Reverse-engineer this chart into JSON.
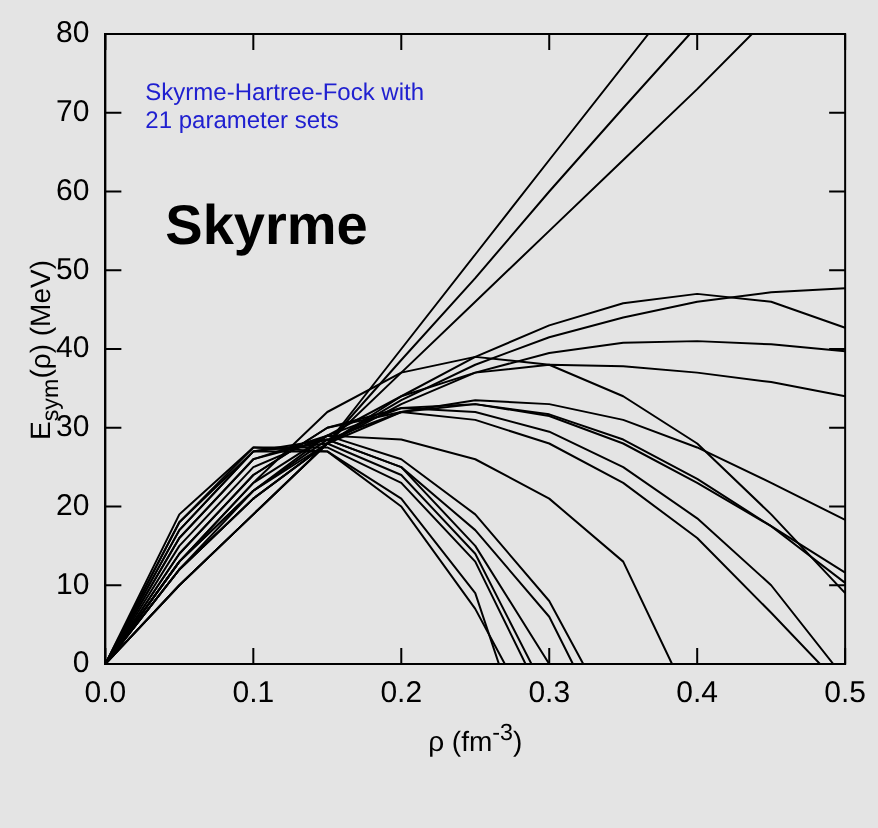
{
  "chart_data": {
    "type": "line",
    "xlabel": "ρ (fm$^{-3}$)",
    "ylabel": "E$_{sym}$(ρ) (MeV)",
    "annotations": [
      "Skyrme-Hartree-Fock with 21 parameter sets",
      "Skyrme"
    ],
    "xlim": [
      0,
      0.5
    ],
    "ylim": [
      0,
      80
    ],
    "xticks": [
      {
        "value": 0,
        "label": "0.0"
      },
      0.1,
      0.2,
      0.3,
      0.4,
      0.5
    ],
    "yticks": [
      0,
      10,
      20,
      30,
      40,
      50,
      60,
      70,
      80
    ],
    "grid": false,
    "legend": false,
    "marker": "none",
    "series": [
      {
        "color": "#000000",
        "x": [
          0,
          0.05,
          0.1,
          0.15,
          0.2,
          0.25,
          0.3,
          0.367
        ],
        "values": [
          0,
          10,
          19,
          28,
          40,
          52,
          64,
          80
        ]
      },
      {
        "color": "#000000",
        "x": [
          0,
          0.05,
          0.1,
          0.15,
          0.2,
          0.25,
          0.3,
          0.35,
          0.395
        ],
        "values": [
          0,
          10,
          19,
          28,
          38.6,
          49,
          60,
          70.6,
          80
        ]
      },
      {
        "color": "#000000",
        "x": [
          0,
          0.05,
          0.1,
          0.15,
          0.2,
          0.25,
          0.3,
          0.35,
          0.4,
          0.437
        ],
        "values": [
          0,
          10,
          19,
          28,
          37,
          46,
          55,
          64,
          73,
          80
        ]
      },
      {
        "color": "#000000",
        "x": [
          0,
          0.05,
          0.1,
          0.15,
          0.2,
          0.25,
          0.3,
          0.35,
          0.4,
          0.45,
          0.5
        ],
        "values": [
          0,
          12,
          21,
          28,
          33.5,
          38,
          41.5,
          44,
          46,
          47.2,
          47.7
        ]
      },
      {
        "color": "#000000",
        "x": [
          0,
          0.05,
          0.1,
          0.15,
          0.2,
          0.25,
          0.3,
          0.35,
          0.4,
          0.45,
          0.5
        ],
        "values": [
          0,
          12,
          21,
          28,
          34,
          39,
          43,
          45.8,
          47,
          46,
          42.7
        ]
      },
      {
        "color": "#000000",
        "x": [
          0,
          0.05,
          0.1,
          0.15,
          0.2,
          0.25,
          0.3,
          0.35,
          0.4,
          0.45,
          0.5
        ],
        "values": [
          0,
          12,
          21,
          28,
          33,
          37,
          39.5,
          40.8,
          41,
          40.6,
          39.7
        ]
      },
      {
        "color": "#000000",
        "x": [
          0,
          0.05,
          0.1,
          0.15,
          0.2,
          0.25,
          0.3,
          0.35,
          0.4,
          0.45,
          0.5
        ],
        "values": [
          0,
          12,
          22,
          29,
          34,
          37,
          38,
          37.8,
          37,
          35.8,
          34
        ]
      },
      {
        "color": "#000000",
        "x": [
          0,
          0.05,
          0.1,
          0.15,
          0.2,
          0.25,
          0.3,
          0.35,
          0.4,
          0.45,
          0.5
        ],
        "values": [
          0,
          13,
          23,
          32,
          37,
          39,
          38,
          34,
          28,
          19,
          9
        ]
      },
      {
        "color": "#000000",
        "x": [
          0,
          0.05,
          0.1,
          0.15,
          0.2,
          0.25,
          0.3,
          0.35,
          0.4,
          0.45,
          0.5
        ],
        "values": [
          0,
          13,
          22,
          28.5,
          32,
          33.5,
          33,
          31,
          27.5,
          23,
          18.3
        ]
      },
      {
        "color": "#000000",
        "x": [
          0,
          0.05,
          0.1,
          0.15,
          0.2,
          0.25,
          0.3,
          0.35,
          0.4,
          0.45,
          0.5
        ],
        "values": [
          0,
          13,
          23,
          29,
          32.5,
          33,
          31.5,
          28,
          23,
          17.5,
          11.6
        ]
      },
      {
        "color": "#000000",
        "x": [
          0,
          0.05,
          0.1,
          0.15,
          0.2,
          0.25,
          0.3,
          0.35,
          0.4,
          0.45,
          0.5
        ],
        "values": [
          0,
          13,
          22,
          28,
          32,
          33,
          31.7,
          28.5,
          23.5,
          17.5,
          10.3
        ]
      },
      {
        "color": "#000000",
        "x": [
          0,
          0.05,
          0.1,
          0.15,
          0.2,
          0.25,
          0.3,
          0.35,
          0.4,
          0.45,
          0.492
        ],
        "values": [
          0,
          14,
          24,
          30,
          32.5,
          32,
          29.5,
          25,
          18.5,
          10,
          0
        ]
      },
      {
        "color": "#000000",
        "x": [
          0,
          0.05,
          0.1,
          0.15,
          0.2,
          0.25,
          0.3,
          0.35,
          0.4,
          0.45,
          0.483
        ],
        "values": [
          0,
          14,
          24,
          30,
          32,
          31,
          28,
          23,
          16,
          6.5,
          0
        ]
      },
      {
        "color": "#000000",
        "x": [
          0,
          0.05,
          0.1,
          0.15,
          0.2,
          0.25,
          0.3,
          0.35,
          0.383
        ],
        "values": [
          0,
          15,
          25,
          29,
          28.5,
          26,
          21,
          13,
          0
        ]
      },
      {
        "color": "#000000",
        "x": [
          0,
          0.05,
          0.1,
          0.15,
          0.2,
          0.25,
          0.3,
          0.323
        ],
        "values": [
          0,
          16,
          26,
          29,
          26,
          19,
          8,
          0
        ]
      },
      {
        "color": "#000000",
        "x": [
          0,
          0.05,
          0.1,
          0.15,
          0.2,
          0.25,
          0.3,
          0.316
        ],
        "values": [
          0,
          17,
          27,
          28.5,
          25,
          17,
          6,
          0
        ]
      },
      {
        "color": "#000000",
        "x": [
          0,
          0.05,
          0.1,
          0.15,
          0.2,
          0.25,
          0.3
        ],
        "values": [
          0,
          16,
          26,
          28.5,
          25,
          15,
          0
        ]
      },
      {
        "color": "#000000",
        "x": [
          0,
          0.05,
          0.1,
          0.15,
          0.2,
          0.25,
          0.288
        ],
        "values": [
          0,
          17,
          27,
          28,
          24,
          14,
          0
        ]
      },
      {
        "color": "#000000",
        "x": [
          0,
          0.05,
          0.1,
          0.15,
          0.2,
          0.25,
          0.284
        ],
        "values": [
          0,
          18,
          27.5,
          27.5,
          23,
          13,
          0
        ]
      },
      {
        "color": "#000000",
        "x": [
          0,
          0.05,
          0.1,
          0.15,
          0.2,
          0.25,
          0.27
        ],
        "values": [
          0,
          19,
          27.5,
          27,
          20,
          7,
          0
        ]
      },
      {
        "color": "#000000",
        "x": [
          0,
          0.05,
          0.1,
          0.15,
          0.2,
          0.25,
          0.266
        ],
        "values": [
          0,
          18,
          27,
          27,
          21,
          9,
          0
        ]
      }
    ]
  }
}
